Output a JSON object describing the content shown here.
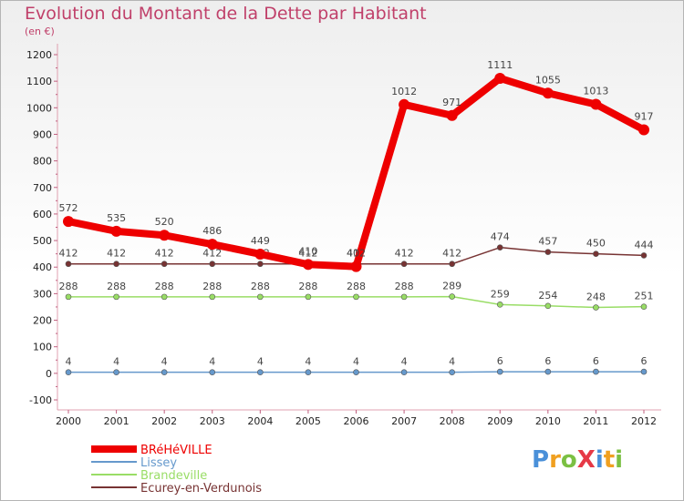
{
  "title": "Evolution du Montant de la Dette par Habitant",
  "subtitle": "(en €)",
  "logo": {
    "text": "ProXiti",
    "letters": [
      {
        "ch": "P",
        "color": "#4a90d9"
      },
      {
        "ch": "r",
        "color": "#f0a020"
      },
      {
        "ch": "o",
        "color": "#7bc043"
      },
      {
        "ch": "X",
        "color": "#e63946"
      },
      {
        "ch": "i",
        "color": "#4a90d9"
      },
      {
        "ch": "t",
        "color": "#f0a020"
      },
      {
        "ch": "i",
        "color": "#7bc043"
      }
    ]
  },
  "chart_data": {
    "type": "line",
    "title": "Evolution du Montant de la Dette par Habitant",
    "ylabel": "(en €)",
    "xlabel": "",
    "ylim": [
      -100,
      1200
    ],
    "yticks": [
      -100,
      0,
      100,
      200,
      300,
      400,
      500,
      600,
      700,
      800,
      900,
      1000,
      1100,
      1200
    ],
    "x": [
      2000,
      2001,
      2002,
      2003,
      2004,
      2005,
      2006,
      2007,
      2008,
      2009,
      2010,
      2011,
      2012
    ],
    "grid": false,
    "legend": "bottom-left",
    "series": [
      {
        "name": "BRéHéVILLE",
        "color": "#ee0000",
        "values": [
          572,
          535,
          520,
          486,
          449,
          410,
          402,
          1012,
          971,
          1111,
          1055,
          1013,
          917
        ]
      },
      {
        "name": "Lissey",
        "color": "#6699cc",
        "values": [
          4,
          4,
          4,
          4,
          4,
          4,
          4,
          4,
          4,
          6,
          6,
          6,
          6
        ]
      },
      {
        "name": "Brandeville",
        "color": "#99dd66",
        "values": [
          288,
          288,
          288,
          288,
          288,
          288,
          288,
          288,
          289,
          259,
          254,
          248,
          251
        ]
      },
      {
        "name": "Ecurey-en-Verdunois",
        "color": "#773333",
        "values": [
          412,
          412,
          412,
          412,
          412,
          412,
          412,
          412,
          412,
          474,
          457,
          450,
          444
        ]
      }
    ]
  }
}
